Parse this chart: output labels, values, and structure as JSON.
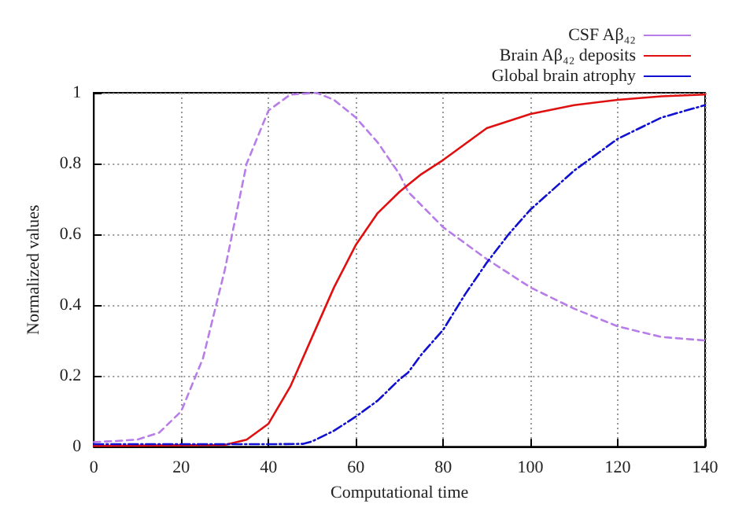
{
  "chart_data": {
    "type": "line",
    "xlabel": "Computational time",
    "ylabel": "Normalized values",
    "xlim": [
      0,
      140
    ],
    "xticks": [
      0,
      20,
      40,
      60,
      80,
      100,
      120,
      140
    ],
    "ylim": [
      0,
      1
    ],
    "yticks": [
      0,
      0.2,
      0.4,
      0.6,
      0.8,
      1
    ],
    "grid": true,
    "legend": "top right",
    "marker": "none",
    "series": [
      {
        "name": "CSF Aβ₄₂",
        "color": "#b77de8",
        "line_style": "dashed",
        "x": [
          0,
          5,
          10,
          15,
          20,
          25,
          30,
          35,
          40,
          45,
          51,
          55,
          60,
          65,
          70,
          72,
          80,
          90,
          100,
          110,
          120,
          130,
          140
        ],
        "values": [
          0.013,
          0.016,
          0.02,
          0.04,
          0.1,
          0.25,
          0.5,
          0.8,
          0.95,
          0.995,
          1.0,
          0.98,
          0.93,
          0.86,
          0.77,
          0.72,
          0.62,
          0.53,
          0.45,
          0.39,
          0.34,
          0.31,
          0.3
        ]
      },
      {
        "name": "Brain Aβ₄₂ deposits",
        "color": "#e01010",
        "line_style": "solid",
        "x": [
          0,
          10,
          20,
          30,
          35,
          40,
          45,
          50,
          55,
          60,
          65,
          70,
          75,
          80,
          90,
          100,
          110,
          120,
          130,
          140
        ],
        "values": [
          0.002,
          0.003,
          0.004,
          0.005,
          0.02,
          0.065,
          0.17,
          0.31,
          0.45,
          0.57,
          0.66,
          0.72,
          0.77,
          0.81,
          0.9,
          0.94,
          0.965,
          0.98,
          0.99,
          0.995
        ]
      },
      {
        "name": "Global brain atrophy",
        "color": "#1010d0",
        "line_style": "dashdot",
        "x": [
          0,
          10,
          20,
          30,
          40,
          48,
          50,
          55,
          60,
          65,
          70,
          72,
          75,
          80,
          85,
          90,
          95,
          100,
          110,
          120,
          130,
          140
        ],
        "values": [
          0.007,
          0.007,
          0.007,
          0.007,
          0.007,
          0.008,
          0.015,
          0.045,
          0.085,
          0.13,
          0.19,
          0.21,
          0.26,
          0.33,
          0.43,
          0.52,
          0.6,
          0.67,
          0.78,
          0.87,
          0.93,
          0.965
        ]
      }
    ]
  }
}
